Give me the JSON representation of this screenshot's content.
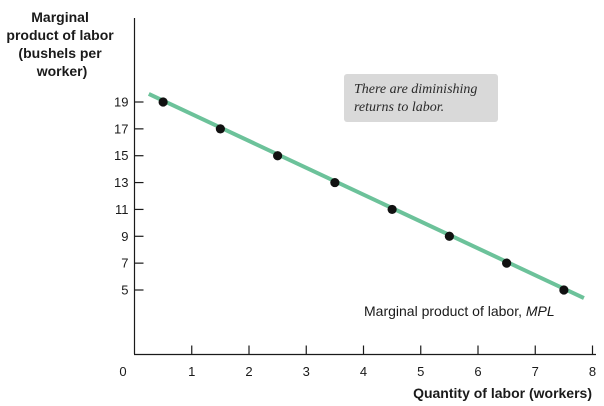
{
  "chart_data": {
    "type": "line",
    "ylabel": [
      "Marginal",
      "product of labor",
      "(bushels per",
      "worker)"
    ],
    "xlabel": "Quantity of labor (workers)",
    "x_ticks": [
      "0",
      "1",
      "2",
      "3",
      "4",
      "5",
      "6",
      "7",
      "8"
    ],
    "y_ticks": [
      "5",
      "7",
      "9",
      "11",
      "13",
      "15",
      "17",
      "19"
    ],
    "xlim": [
      0,
      8
    ],
    "ylim": [
      0,
      21
    ],
    "grid": false,
    "series": [
      {
        "name": "Marginal product of labor, MPL",
        "color": "#6cc29a",
        "x": [
          0.5,
          1.5,
          2.5,
          3.5,
          4.5,
          5.5,
          6.5,
          7.5
        ],
        "y": [
          19,
          17,
          15,
          13,
          11,
          9,
          7,
          5
        ],
        "line_extent": {
          "x": [
            0.25,
            7.85
          ],
          "y": [
            19.6,
            4.4
          ]
        }
      }
    ],
    "series_label_prefix": "Marginal product of labor, ",
    "series_label_italic": "MPL",
    "annotation": [
      "There are diminishing",
      "returns to labor."
    ],
    "annotation_bg": "#d9d9d9"
  }
}
